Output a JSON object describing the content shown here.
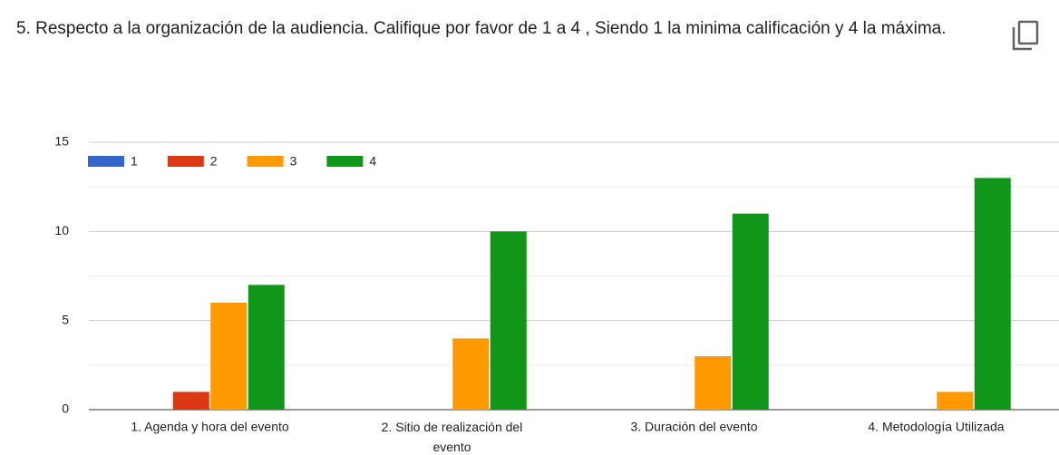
{
  "chart_data": {
    "type": "bar",
    "title": "5. Respecto a la organización de la audiencia. Califique por favor de 1 a 4 , Siendo 1 la minima calificación y 4 la máxima.",
    "categories": [
      "1. Agenda y hora del evento",
      "2. Sitio de realización del evento",
      "3. Duración del evento",
      "4. Metodología Utilizada"
    ],
    "series": [
      {
        "name": "1",
        "color": "#3366cc",
        "values": [
          0,
          0,
          0,
          0
        ]
      },
      {
        "name": "2",
        "color": "#dc3912",
        "values": [
          1,
          0,
          0,
          0
        ]
      },
      {
        "name": "3",
        "color": "#ff9900",
        "values": [
          6,
          4,
          3,
          1
        ]
      },
      {
        "name": "4",
        "color": "#109618",
        "values": [
          7,
          10,
          11,
          13
        ]
      }
    ],
    "ylim": [
      0,
      15
    ],
    "yticks": [
      0,
      5,
      10,
      15
    ],
    "grid": true,
    "legend": "top-left"
  }
}
